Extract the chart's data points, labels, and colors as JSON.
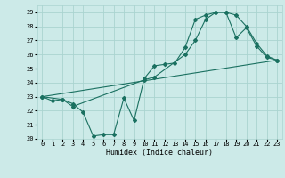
{
  "background_color": "#cceae8",
  "grid_color": "#aad4d0",
  "line_color": "#1a7060",
  "marker_color": "#1a7060",
  "xlabel": "Humidex (Indice chaleur)",
  "ylim": [
    20,
    29.5
  ],
  "xlim": [
    -0.5,
    23.5
  ],
  "yticks": [
    20,
    21,
    22,
    23,
    24,
    25,
    26,
    27,
    28,
    29
  ],
  "xticks": [
    0,
    1,
    2,
    3,
    4,
    5,
    6,
    7,
    8,
    9,
    10,
    11,
    12,
    13,
    14,
    15,
    16,
    17,
    18,
    19,
    20,
    21,
    22,
    23
  ],
  "line1_x": [
    0,
    1,
    2,
    3,
    4,
    5,
    6,
    7,
    8,
    9,
    10,
    11,
    12,
    13,
    14,
    15,
    16,
    17,
    18,
    19,
    20,
    21,
    22,
    23
  ],
  "line1_y": [
    23.0,
    22.7,
    22.8,
    22.5,
    21.9,
    20.2,
    20.3,
    20.3,
    22.9,
    21.3,
    24.3,
    25.2,
    25.3,
    25.4,
    26.5,
    28.5,
    28.8,
    29.0,
    29.0,
    27.2,
    27.9,
    26.6,
    25.8,
    25.6
  ],
  "line2_x": [
    0,
    2,
    3,
    10,
    11,
    14,
    15,
    16,
    17,
    18,
    19,
    20,
    21,
    22,
    23
  ],
  "line2_y": [
    23.0,
    22.8,
    22.3,
    24.2,
    24.4,
    26.0,
    27.0,
    28.5,
    29.0,
    29.0,
    28.8,
    28.0,
    26.8,
    25.9,
    25.6
  ],
  "line3_x": [
    0,
    23
  ],
  "line3_y": [
    23.0,
    25.6
  ],
  "tick_fontsize": 5.0,
  "label_fontsize": 6.0,
  "linewidth": 0.8,
  "markersize": 2.0
}
